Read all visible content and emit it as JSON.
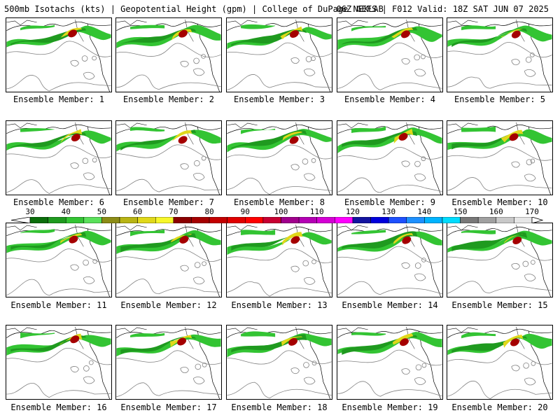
{
  "header": {
    "title_left": "500mb Isotachs (kts) | Geopotential Height (gpm) | College of DuPage NEXLAB",
    "title_right": "06Z GEFS | F012 Valid: 18Z SAT JUN 07 2025"
  },
  "members": [
    {
      "label": "Ensemble Member: 1"
    },
    {
      "label": "Ensemble Member: 2"
    },
    {
      "label": "Ensemble Member: 3"
    },
    {
      "label": "Ensemble Member: 4"
    },
    {
      "label": "Ensemble Member: 5"
    },
    {
      "label": "Ensemble Member: 6"
    },
    {
      "label": "Ensemble Member: 7"
    },
    {
      "label": "Ensemble Member: 8"
    },
    {
      "label": "Ensemble Member: 9"
    },
    {
      "label": "Ensemble Member: 10"
    },
    {
      "label": "Ensemble Member: 11"
    },
    {
      "label": "Ensemble Member: 12"
    },
    {
      "label": "Ensemble Member: 13"
    },
    {
      "label": "Ensemble Member: 14"
    },
    {
      "label": "Ensemble Member: 15"
    },
    {
      "label": "Ensemble Member: 16"
    },
    {
      "label": "Ensemble Member: 17"
    },
    {
      "label": "Ensemble Member: 18"
    },
    {
      "label": "Ensemble Member: 19"
    },
    {
      "label": "Ensemble Member: 20"
    }
  ],
  "colorbar": {
    "ticks": [
      "30",
      "40",
      "50",
      "60",
      "70",
      "80",
      "90",
      "100",
      "110",
      "120",
      "130",
      "140",
      "150",
      "160",
      "170"
    ],
    "colors": [
      "#0b6e0b",
      "#1f9a1f",
      "#33c433",
      "#5ae05a",
      "#8c8c16",
      "#b8b414",
      "#e0d81a",
      "#f7f72a",
      "#8b0000",
      "#a50000",
      "#c40000",
      "#e00000",
      "#ff0000",
      "#c80032",
      "#a0008c",
      "#b400b4",
      "#d400d4",
      "#ff00ff",
      "#1414a0",
      "#0000dc",
      "#1e50ff",
      "#1e90ff",
      "#00b4ff",
      "#00dcff",
      "#787878",
      "#a0a0a0",
      "#c8c8c8",
      "#e6e6e6"
    ]
  }
}
